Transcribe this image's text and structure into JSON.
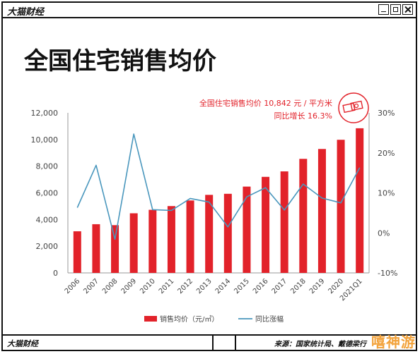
{
  "app": {
    "brand": "大猫财经",
    "brand_bottom": "大猫财经",
    "source": "来源：国家统计局、戴德梁行",
    "watermark": "嘻神游"
  },
  "colors": {
    "bar": "#e2222a",
    "line": "#4a97bd",
    "text": "#444444",
    "annotation": "#e2222a"
  },
  "chart_data": {
    "type": "bar",
    "title": "全国住宅销售均价",
    "annotation": {
      "line1": "全国住宅销售均价 10,842 元 / 平方米",
      "line2": "同比增长 16.3%"
    },
    "categories": [
      "2006",
      "2007",
      "2008",
      "2009",
      "2010",
      "2011",
      "2012",
      "2013",
      "2014",
      "2015",
      "2016",
      "2017",
      "2018",
      "2019",
      "2020",
      "2021Q1"
    ],
    "series": [
      {
        "name": "销售均价（元/㎡）",
        "type": "bar",
        "axis": "left",
        "values": [
          3120,
          3650,
          3580,
          4470,
          4730,
          5010,
          5430,
          5850,
          5930,
          6470,
          7200,
          7610,
          8550,
          9290,
          9980,
          10842
        ]
      },
      {
        "name": "同比涨幅",
        "type": "line",
        "axis": "right",
        "values": [
          6.3,
          16.9,
          -1.6,
          24.7,
          5.8,
          5.6,
          8.6,
          7.7,
          1.5,
          9.0,
          11.3,
          5.7,
          12.2,
          8.7,
          7.5,
          16.3
        ]
      }
    ],
    "yleft": {
      "min": 0,
      "max": 12000,
      "ticks": [
        0,
        2000,
        4000,
        6000,
        8000,
        10000,
        12000
      ],
      "tick_labels": [
        "0",
        "2,000",
        "4,000",
        "6,000",
        "8,000",
        "10,000",
        "12,000"
      ]
    },
    "yright": {
      "min": -10,
      "max": 30,
      "ticks": [
        -10,
        0,
        10,
        20,
        30
      ],
      "tick_labels": [
        "-10%",
        "0%",
        "10%",
        "20%",
        "30%"
      ]
    },
    "legend": {
      "position": "bottom",
      "bar_label": "销售均价（元/㎡）",
      "line_label": "同比涨幅"
    },
    "grid": false
  }
}
